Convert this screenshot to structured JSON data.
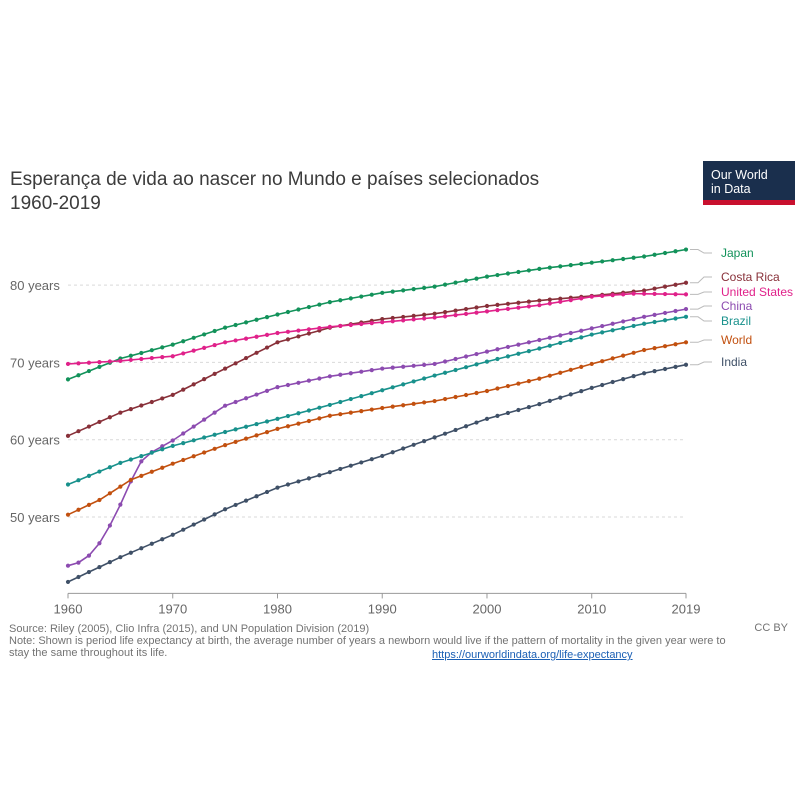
{
  "header": {
    "title_line1": "Esperança de vida ao nascer no Mundo e países selecionados",
    "title_line2": "1960-2019",
    "logo_line1": "Our World",
    "logo_line2": "in Data",
    "logo_color": "#1a2f4d",
    "logo_accent": "#c8102e"
  },
  "footer": {
    "source": "Source: Riley (2005), Clio Infra (2015), and UN Population Division (2019)",
    "note_line1": "Note: Shown is period life expectancy at birth, the average number of years a newborn would live if the pattern of mortality in the given year were to",
    "note_line2": "stay the same throughout its life.",
    "license": "CC BY",
    "url": "https://ourworldindata.org/life-expectancy"
  },
  "chart_data": {
    "type": "line",
    "title": "Esperança de vida ao nascer no Mundo e países selecionados",
    "subtitle": "1960-2019",
    "xlabel": "",
    "ylabel": "",
    "xlim": [
      1960,
      2019
    ],
    "ylim": [
      40.5,
      86
    ],
    "x_ticks": [
      "1960",
      "1970",
      "1980",
      "1990",
      "2000",
      "2010",
      "2019"
    ],
    "y_ticks": [
      "50 years",
      "60 years",
      "70 years",
      "80 years"
    ],
    "grid": true,
    "legend": "right, inline labels",
    "series": [
      {
        "name": "Japan",
        "color": "#12925a",
        "keypoints": [
          [
            1960,
            67.8
          ],
          [
            1965,
            70.5
          ],
          [
            1970,
            72.3
          ],
          [
            1975,
            74.5
          ],
          [
            1980,
            76.2
          ],
          [
            1985,
            77.8
          ],
          [
            1990,
            79.0
          ],
          [
            1995,
            79.8
          ],
          [
            2000,
            81.1
          ],
          [
            2005,
            82.1
          ],
          [
            2010,
            82.9
          ],
          [
            2015,
            83.7
          ],
          [
            2019,
            84.6
          ]
        ]
      },
      {
        "name": "Costa Rica",
        "color": "#883039",
        "keypoints": [
          [
            1960,
            60.5
          ],
          [
            1965,
            63.5
          ],
          [
            1970,
            65.8
          ],
          [
            1975,
            69.2
          ],
          [
            1980,
            72.6
          ],
          [
            1985,
            74.5
          ],
          [
            1990,
            75.6
          ],
          [
            1995,
            76.3
          ],
          [
            2000,
            77.3
          ],
          [
            2005,
            78.0
          ],
          [
            2010,
            78.6
          ],
          [
            2015,
            79.3
          ],
          [
            2019,
            80.3
          ]
        ]
      },
      {
        "name": "United States",
        "color": "#e0218a",
        "keypoints": [
          [
            1960,
            69.8
          ],
          [
            1965,
            70.2
          ],
          [
            1970,
            70.8
          ],
          [
            1975,
            72.6
          ],
          [
            1980,
            73.8
          ],
          [
            1985,
            74.6
          ],
          [
            1990,
            75.2
          ],
          [
            1995,
            75.8
          ],
          [
            2000,
            76.6
          ],
          [
            2005,
            77.4
          ],
          [
            2010,
            78.5
          ],
          [
            2014,
            78.9
          ],
          [
            2019,
            78.8
          ]
        ]
      },
      {
        "name": "China",
        "color": "#8c4bb0",
        "keypoints": [
          [
            1960,
            43.7
          ],
          [
            1961,
            44.1
          ],
          [
            1962,
            45.0
          ],
          [
            1963,
            46.6
          ],
          [
            1964,
            48.9
          ],
          [
            1965,
            51.6
          ],
          [
            1966,
            54.6
          ],
          [
            1967,
            57.2
          ],
          [
            1968,
            58.4
          ],
          [
            1970,
            59.9
          ],
          [
            1975,
            64.4
          ],
          [
            1980,
            66.8
          ],
          [
            1985,
            68.2
          ],
          [
            1990,
            69.2
          ],
          [
            1995,
            69.8
          ],
          [
            2000,
            71.4
          ],
          [
            2005,
            72.9
          ],
          [
            2010,
            74.4
          ],
          [
            2015,
            75.9
          ],
          [
            2019,
            76.9
          ]
        ]
      },
      {
        "name": "Brazil",
        "color": "#18918c",
        "keypoints": [
          [
            1960,
            54.2
          ],
          [
            1965,
            57.0
          ],
          [
            1970,
            59.2
          ],
          [
            1975,
            61.0
          ],
          [
            1980,
            62.7
          ],
          [
            1985,
            64.5
          ],
          [
            1990,
            66.4
          ],
          [
            1995,
            68.3
          ],
          [
            2000,
            70.1
          ],
          [
            2005,
            71.8
          ],
          [
            2010,
            73.6
          ],
          [
            2015,
            75.0
          ],
          [
            2019,
            75.9
          ]
        ]
      },
      {
        "name": "World",
        "color": "#c2500f",
        "keypoints": [
          [
            1960,
            50.3
          ],
          [
            1963,
            52.2
          ],
          [
            1966,
            54.8
          ],
          [
            1970,
            56.9
          ],
          [
            1975,
            59.3
          ],
          [
            1980,
            61.4
          ],
          [
            1985,
            63.1
          ],
          [
            1990,
            64.1
          ],
          [
            1995,
            65.0
          ],
          [
            2000,
            66.3
          ],
          [
            2005,
            67.9
          ],
          [
            2010,
            69.8
          ],
          [
            2015,
            71.6
          ],
          [
            2019,
            72.6
          ]
        ]
      },
      {
        "name": "India",
        "color": "#3f5067",
        "keypoints": [
          [
            1960,
            41.6
          ],
          [
            1965,
            44.8
          ],
          [
            1970,
            47.7
          ],
          [
            1975,
            51.0
          ],
          [
            1980,
            53.8
          ],
          [
            1985,
            55.8
          ],
          [
            1990,
            57.9
          ],
          [
            1995,
            60.3
          ],
          [
            2000,
            62.7
          ],
          [
            2005,
            64.6
          ],
          [
            2010,
            66.7
          ],
          [
            2015,
            68.6
          ],
          [
            2019,
            69.7
          ]
        ]
      }
    ]
  }
}
